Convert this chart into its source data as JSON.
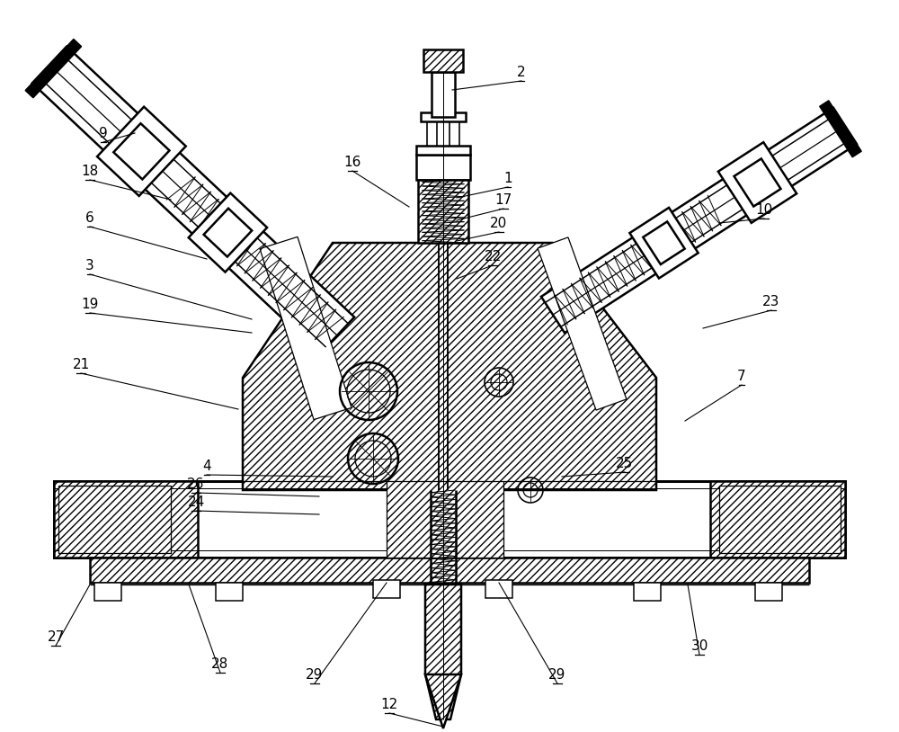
{
  "bg_color": "#ffffff",
  "line_color": "#000000",
  "fig_width": 10.0,
  "fig_height": 8.14,
  "font_size": 11,
  "lw_main": 1.8,
  "lw_thin": 0.9
}
